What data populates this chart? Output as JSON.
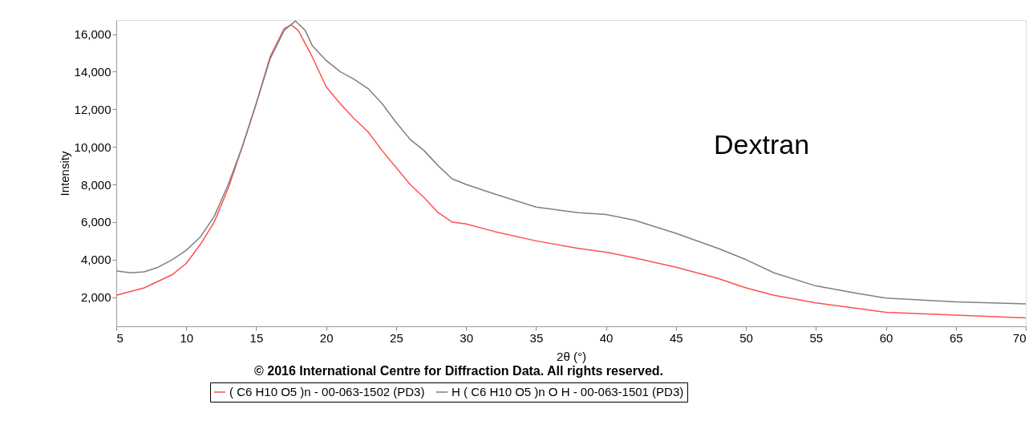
{
  "chart_data": {
    "type": "line",
    "xlabel": "2θ (°)",
    "ylabel": "Intensity",
    "annotations": [
      "Dextran",
      "© 2016 International Centre for Diffraction Data. All rights reserved."
    ],
    "xlim": [
      5,
      70
    ],
    "xticks": [
      5,
      10,
      15,
      20,
      25,
      30,
      35,
      40,
      45,
      50,
      55,
      60,
      65,
      70
    ],
    "ylim": [
      450,
      16750
    ],
    "yticks": [
      {
        "value": 2000,
        "label": "2,000"
      },
      {
        "value": 4000,
        "label": "4,000"
      },
      {
        "value": 6000,
        "label": "6,000"
      },
      {
        "value": 8000,
        "label": "8,000"
      },
      {
        "value": 10000,
        "label": "10,000"
      },
      {
        "value": 12000,
        "label": "12,000"
      },
      {
        "value": 14000,
        "label": "14,000"
      },
      {
        "value": 16000,
        "label": "16,000"
      }
    ],
    "grid": false,
    "legend": "bottom",
    "line_style": "solid",
    "marker": "none",
    "series": [
      {
        "name": "( C6 H10 O5 )n - 00-063-1502 (PD3)",
        "color": "#ff5050",
        "x": [
          5,
          7,
          9,
          10,
          11,
          12,
          13,
          14,
          15,
          16,
          17,
          17.5,
          18,
          19,
          20,
          21,
          22,
          23,
          24,
          25,
          26,
          27,
          28,
          29,
          30,
          32,
          35,
          38,
          40,
          42,
          45,
          48,
          50,
          52,
          55,
          58,
          60,
          65,
          70
        ],
        "values": [
          2100,
          2500,
          3200,
          3800,
          4800,
          6000,
          7800,
          10000,
          12300,
          14800,
          16300,
          16500,
          16200,
          14800,
          13200,
          12300,
          11500,
          10800,
          9800,
          8900,
          8000,
          7300,
          6500,
          6000,
          5900,
          5500,
          5000,
          4600,
          4400,
          4100,
          3600,
          3000,
          2500,
          2100,
          1700,
          1400,
          1200,
          1050,
          900
        ]
      },
      {
        "name": "H ( C6 H10 O5 )n O H - 00-063-1501 (PD3)",
        "color": "#808080",
        "x": [
          5,
          6,
          7,
          8,
          9,
          10,
          11,
          12,
          13,
          14,
          15,
          16,
          17,
          17.8,
          18.5,
          19,
          20,
          21,
          22,
          23,
          24,
          25,
          26,
          27,
          28,
          29,
          30,
          32,
          35,
          38,
          40,
          42,
          45,
          48,
          50,
          52,
          55,
          58,
          60,
          65,
          70
        ],
        "values": [
          3400,
          3300,
          3350,
          3600,
          4000,
          4500,
          5200,
          6300,
          8000,
          10000,
          12300,
          14700,
          16200,
          16700,
          16200,
          15400,
          14600,
          14000,
          13600,
          13100,
          12300,
          11300,
          10400,
          9800,
          9000,
          8300,
          8000,
          7500,
          6800,
          6500,
          6400,
          6100,
          5400,
          4600,
          4000,
          3300,
          2600,
          2200,
          1950,
          1750,
          1650
        ]
      }
    ]
  }
}
